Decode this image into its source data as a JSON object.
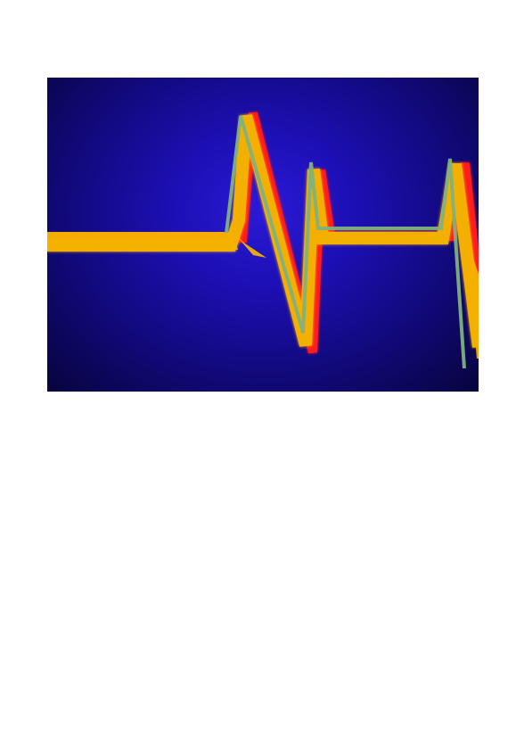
{
  "page": {
    "background_color": "#ffffff"
  },
  "image": {
    "description_icon": "heartbeat-waveform-icon",
    "colors": {
      "background_center": "#2a1ad8",
      "background_edge": "#07043d",
      "waveform_fill": "#f4b000",
      "waveform_highlight": "#7fb17d",
      "waveform_shadow": "#ff1a1a"
    }
  }
}
